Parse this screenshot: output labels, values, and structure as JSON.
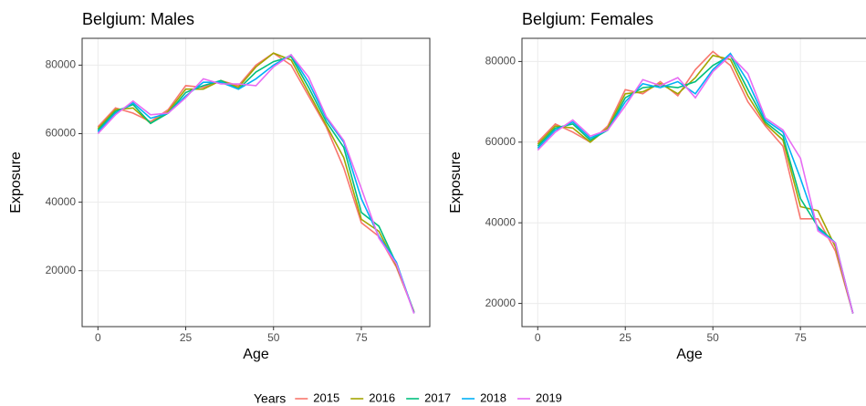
{
  "chart_data": [
    {
      "type": "line",
      "title": "Belgium: Males",
      "x_label": "Age",
      "y_label": "Exposure",
      "legend_title": "Years",
      "x": [
        0,
        5,
        10,
        15,
        20,
        25,
        30,
        35,
        40,
        45,
        50,
        55,
        60,
        65,
        70,
        75,
        80,
        85,
        90
      ],
      "xlim": [
        -4.5,
        94.5
      ],
      "xticks": [
        0,
        25,
        50,
        75
      ],
      "ylim": [
        3675,
        87825
      ],
      "yticks": [
        20000,
        40000,
        60000,
        80000
      ],
      "grid": true,
      "series": [
        {
          "name": "2015",
          "color": "#F8766D",
          "values": [
            62000,
            67500,
            66000,
            63500,
            67000,
            74000,
            73500,
            75500,
            74000,
            80000,
            83500,
            80000,
            71000,
            62000,
            50000,
            34000,
            30000,
            21000,
            8000
          ]
        },
        {
          "name": "2016",
          "color": "#A3A500",
          "values": [
            61500,
            67000,
            67500,
            63000,
            66500,
            73000,
            73000,
            75500,
            73500,
            79500,
            83500,
            81500,
            72000,
            62500,
            53000,
            35000,
            31500,
            21500,
            8000
          ]
        },
        {
          "name": "2017",
          "color": "#00BF7D",
          "values": [
            61000,
            66500,
            68500,
            63000,
            66000,
            72000,
            74000,
            75500,
            73000,
            78000,
            81000,
            82500,
            73500,
            63500,
            56000,
            37000,
            33000,
            22000,
            7800
          ]
        },
        {
          "name": "2018",
          "color": "#00B0F6",
          "values": [
            60500,
            66000,
            69000,
            64500,
            66000,
            71000,
            75000,
            75000,
            73000,
            76000,
            80000,
            83000,
            75000,
            64500,
            57500,
            41000,
            30000,
            22500,
            7600
          ]
        },
        {
          "name": "2019",
          "color": "#E76BF3",
          "values": [
            60000,
            65500,
            69500,
            65500,
            66000,
            70500,
            76000,
            74500,
            74500,
            74000,
            79500,
            83000,
            76500,
            65000,
            58000,
            44000,
            29500,
            22000,
            7500
          ]
        }
      ]
    },
    {
      "type": "line",
      "title": "Belgium: Females",
      "x_label": "Age",
      "y_label": "Exposure",
      "x": [
        0,
        5,
        10,
        15,
        20,
        25,
        30,
        35,
        40,
        45,
        50,
        55,
        60,
        65,
        70,
        75,
        80,
        85,
        90
      ],
      "xlim": [
        -4.5,
        94.5
      ],
      "xticks": [
        0,
        25,
        50,
        75
      ],
      "ylim": [
        14250,
        85750
      ],
      "yticks": [
        20000,
        40000,
        60000,
        80000
      ],
      "grid": true,
      "series": [
        {
          "name": "2015",
          "color": "#F8766D",
          "values": [
            60000,
            64500,
            62500,
            60000,
            64000,
            73000,
            72000,
            75000,
            71500,
            78000,
            82500,
            79000,
            70000,
            64000,
            59000,
            41000,
            41000,
            33000,
            17500
          ]
        },
        {
          "name": "2016",
          "color": "#A3A500",
          "values": [
            59500,
            64000,
            63500,
            60000,
            63500,
            72000,
            72500,
            74500,
            72000,
            76000,
            81500,
            80500,
            71500,
            64500,
            60500,
            44000,
            43000,
            34000,
            17500
          ]
        },
        {
          "name": "2017",
          "color": "#00BF7D",
          "values": [
            59000,
            63500,
            64500,
            60500,
            63000,
            71000,
            73500,
            74000,
            73500,
            75000,
            79000,
            81500,
            73000,
            65000,
            61500,
            46000,
            39000,
            35000,
            17500
          ]
        },
        {
          "name": "2018",
          "color": "#00B0F6",
          "values": [
            58500,
            63000,
            65000,
            61000,
            63000,
            70000,
            74500,
            73500,
            75000,
            72000,
            78000,
            82000,
            75000,
            65500,
            62500,
            51000,
            38500,
            35000,
            17500
          ]
        },
        {
          "name": "2019",
          "color": "#E76BF3",
          "values": [
            58000,
            62500,
            65500,
            61500,
            63000,
            69000,
            75500,
            74000,
            76000,
            71000,
            77500,
            81500,
            77000,
            66000,
            63000,
            56000,
            38000,
            35000,
            17500
          ]
        }
      ]
    }
  ]
}
